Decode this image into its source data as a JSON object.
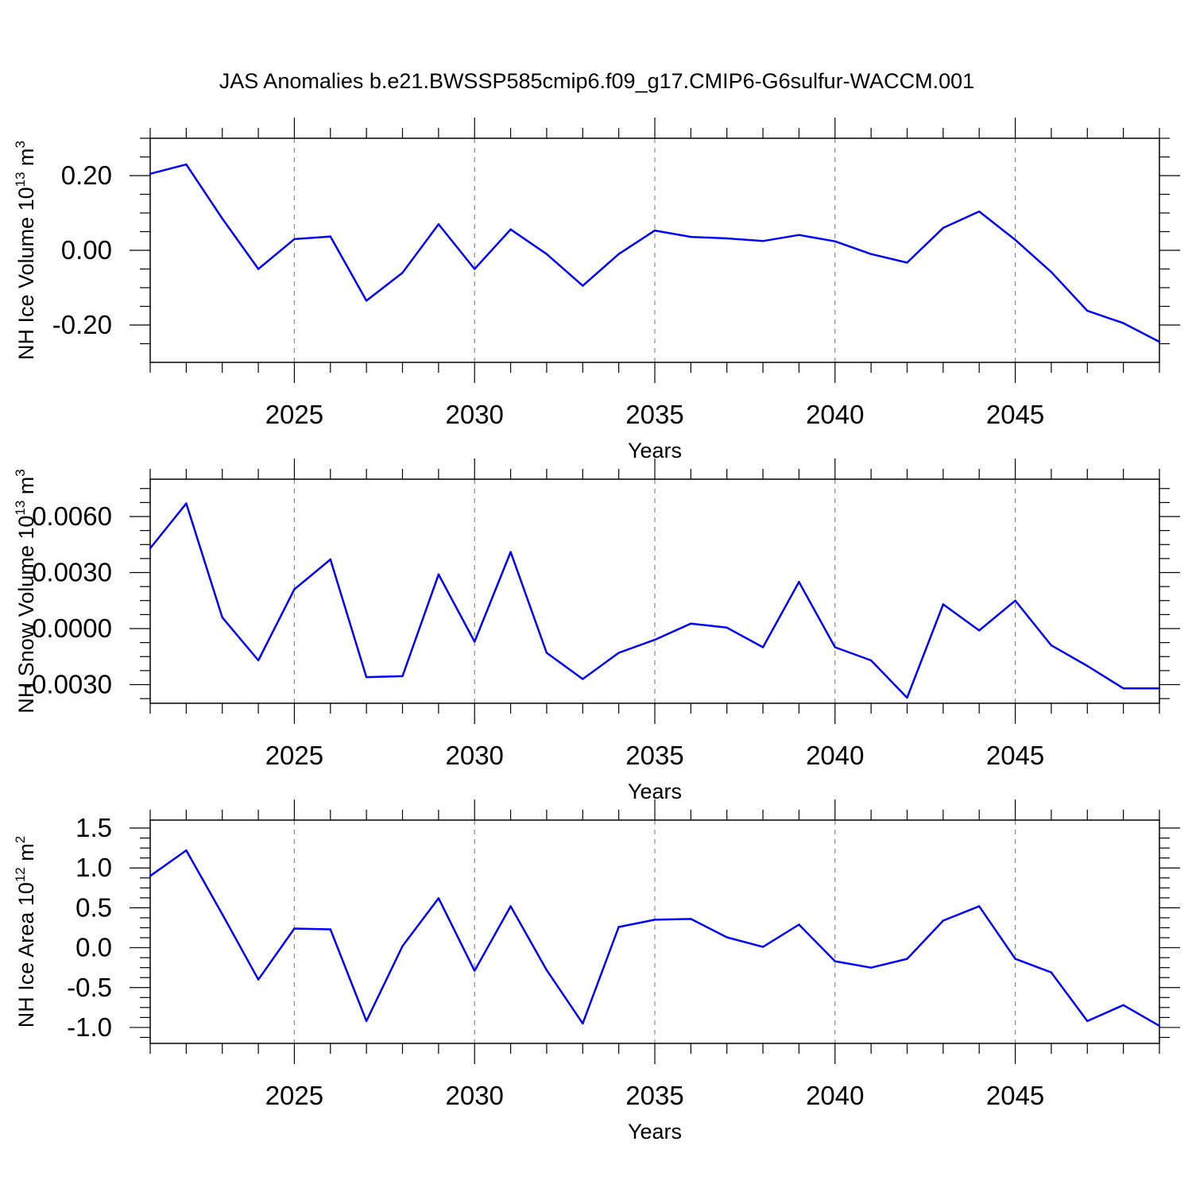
{
  "title": "JAS Anomalies b.e21.BWSSP585cmip6.f09_g17.CMIP6-G6sulfur-WACCM.001",
  "chart_data": [
    {
      "type": "line",
      "id": "ice-volume",
      "ylabel": {
        "text": "NH Ice Volume 10",
        "sup1": "13",
        "unit": " m",
        "sup2": "3"
      },
      "xlabel": "Years",
      "xlim": [
        2021,
        2049
      ],
      "ylim": [
        -0.3,
        0.3
      ],
      "xticks": [
        2025,
        2030,
        2035,
        2040,
        2045
      ],
      "xtick_labels": [
        "2025",
        "2030",
        "2035",
        "2040",
        "2045"
      ],
      "yticks": [
        0.2,
        0.0,
        -0.2
      ],
      "ytick_labels": [
        "0.20",
        "0.00",
        "-0.20"
      ],
      "series_color": "#0000ff",
      "x": [
        2021,
        2022,
        2023,
        2024,
        2025,
        2026,
        2027,
        2028,
        2029,
        2030,
        2031,
        2032,
        2033,
        2034,
        2035,
        2036,
        2037,
        2038,
        2039,
        2040,
        2041,
        2042,
        2043,
        2044,
        2045,
        2046,
        2047,
        2048,
        2049
      ],
      "values": [
        0.205,
        0.23,
        0.085,
        -0.05,
        0.03,
        0.037,
        -0.135,
        -0.06,
        0.07,
        -0.05,
        0.056,
        -0.01,
        -0.095,
        -0.01,
        0.053,
        0.036,
        0.032,
        0.025,
        0.041,
        0.024,
        -0.01,
        -0.033,
        0.06,
        0.104,
        0.028,
        -0.058,
        -0.162,
        -0.195,
        -0.245
      ]
    },
    {
      "type": "line",
      "id": "snow-volume",
      "ylabel": {
        "text": "NH Snow Volume 10",
        "sup1": "13",
        "unit": " m",
        "sup2": "3"
      },
      "xlabel": "Years",
      "xlim": [
        2021,
        2049
      ],
      "ylim": [
        -0.004,
        0.008
      ],
      "xticks": [
        2025,
        2030,
        2035,
        2040,
        2045
      ],
      "xtick_labels": [
        "2025",
        "2030",
        "2035",
        "2040",
        "2045"
      ],
      "yticks": [
        0.006,
        0.003,
        0.0,
        -0.003
      ],
      "ytick_labels": [
        "0.0060",
        "0.0030",
        "0.0000",
        "-0.0030"
      ],
      "series_color": "#0000ff",
      "x": [
        2021,
        2022,
        2023,
        2024,
        2025,
        2026,
        2027,
        2028,
        2029,
        2030,
        2031,
        2032,
        2033,
        2034,
        2035,
        2036,
        2037,
        2038,
        2039,
        2040,
        2041,
        2042,
        2043,
        2044,
        2045,
        2046,
        2047,
        2048,
        2049
      ],
      "values": [
        0.0043,
        0.0067,
        0.0006,
        -0.0017,
        0.0021,
        0.0037,
        -0.0026,
        -0.00255,
        0.0029,
        -0.0007,
        0.0041,
        -0.0013,
        -0.0027,
        -0.0013,
        -0.0006,
        0.00027,
        5e-05,
        -0.001,
        0.0025,
        -0.001,
        -0.0017,
        -0.0037,
        0.0013,
        -0.0001,
        0.0015,
        -0.0009,
        -0.002,
        -0.0032,
        -0.0032
      ]
    },
    {
      "type": "line",
      "id": "ice-area",
      "ylabel": {
        "text": "NH Ice Area 10",
        "sup1": "12",
        "unit": " m",
        "sup2": "2"
      },
      "xlabel": "Years",
      "xlim": [
        2021,
        2049
      ],
      "ylim": [
        -1.2,
        1.6
      ],
      "xticks": [
        2025,
        2030,
        2035,
        2040,
        2045
      ],
      "xtick_labels": [
        "2025",
        "2030",
        "2035",
        "2040",
        "2045"
      ],
      "yticks": [
        1.5,
        1.0,
        0.5,
        0.0,
        -0.5,
        -1.0
      ],
      "ytick_labels": [
        "1.5",
        "1.0",
        "0.5",
        "0.0",
        "-0.5",
        "-1.0"
      ],
      "series_color": "#0000ff",
      "x": [
        2021,
        2022,
        2023,
        2024,
        2025,
        2026,
        2027,
        2028,
        2029,
        2030,
        2031,
        2032,
        2033,
        2034,
        2035,
        2036,
        2037,
        2038,
        2039,
        2040,
        2041,
        2042,
        2043,
        2044,
        2045,
        2046,
        2047,
        2048,
        2049
      ],
      "values": [
        0.9,
        1.22,
        0.42,
        -0.4,
        0.24,
        0.23,
        -0.92,
        0.02,
        0.62,
        -0.29,
        0.52,
        -0.28,
        -0.95,
        0.26,
        0.35,
        0.36,
        0.13,
        0.01,
        0.29,
        -0.17,
        -0.25,
        -0.14,
        0.34,
        0.52,
        -0.14,
        -0.31,
        -0.92,
        -0.72,
        -0.98
      ]
    }
  ]
}
